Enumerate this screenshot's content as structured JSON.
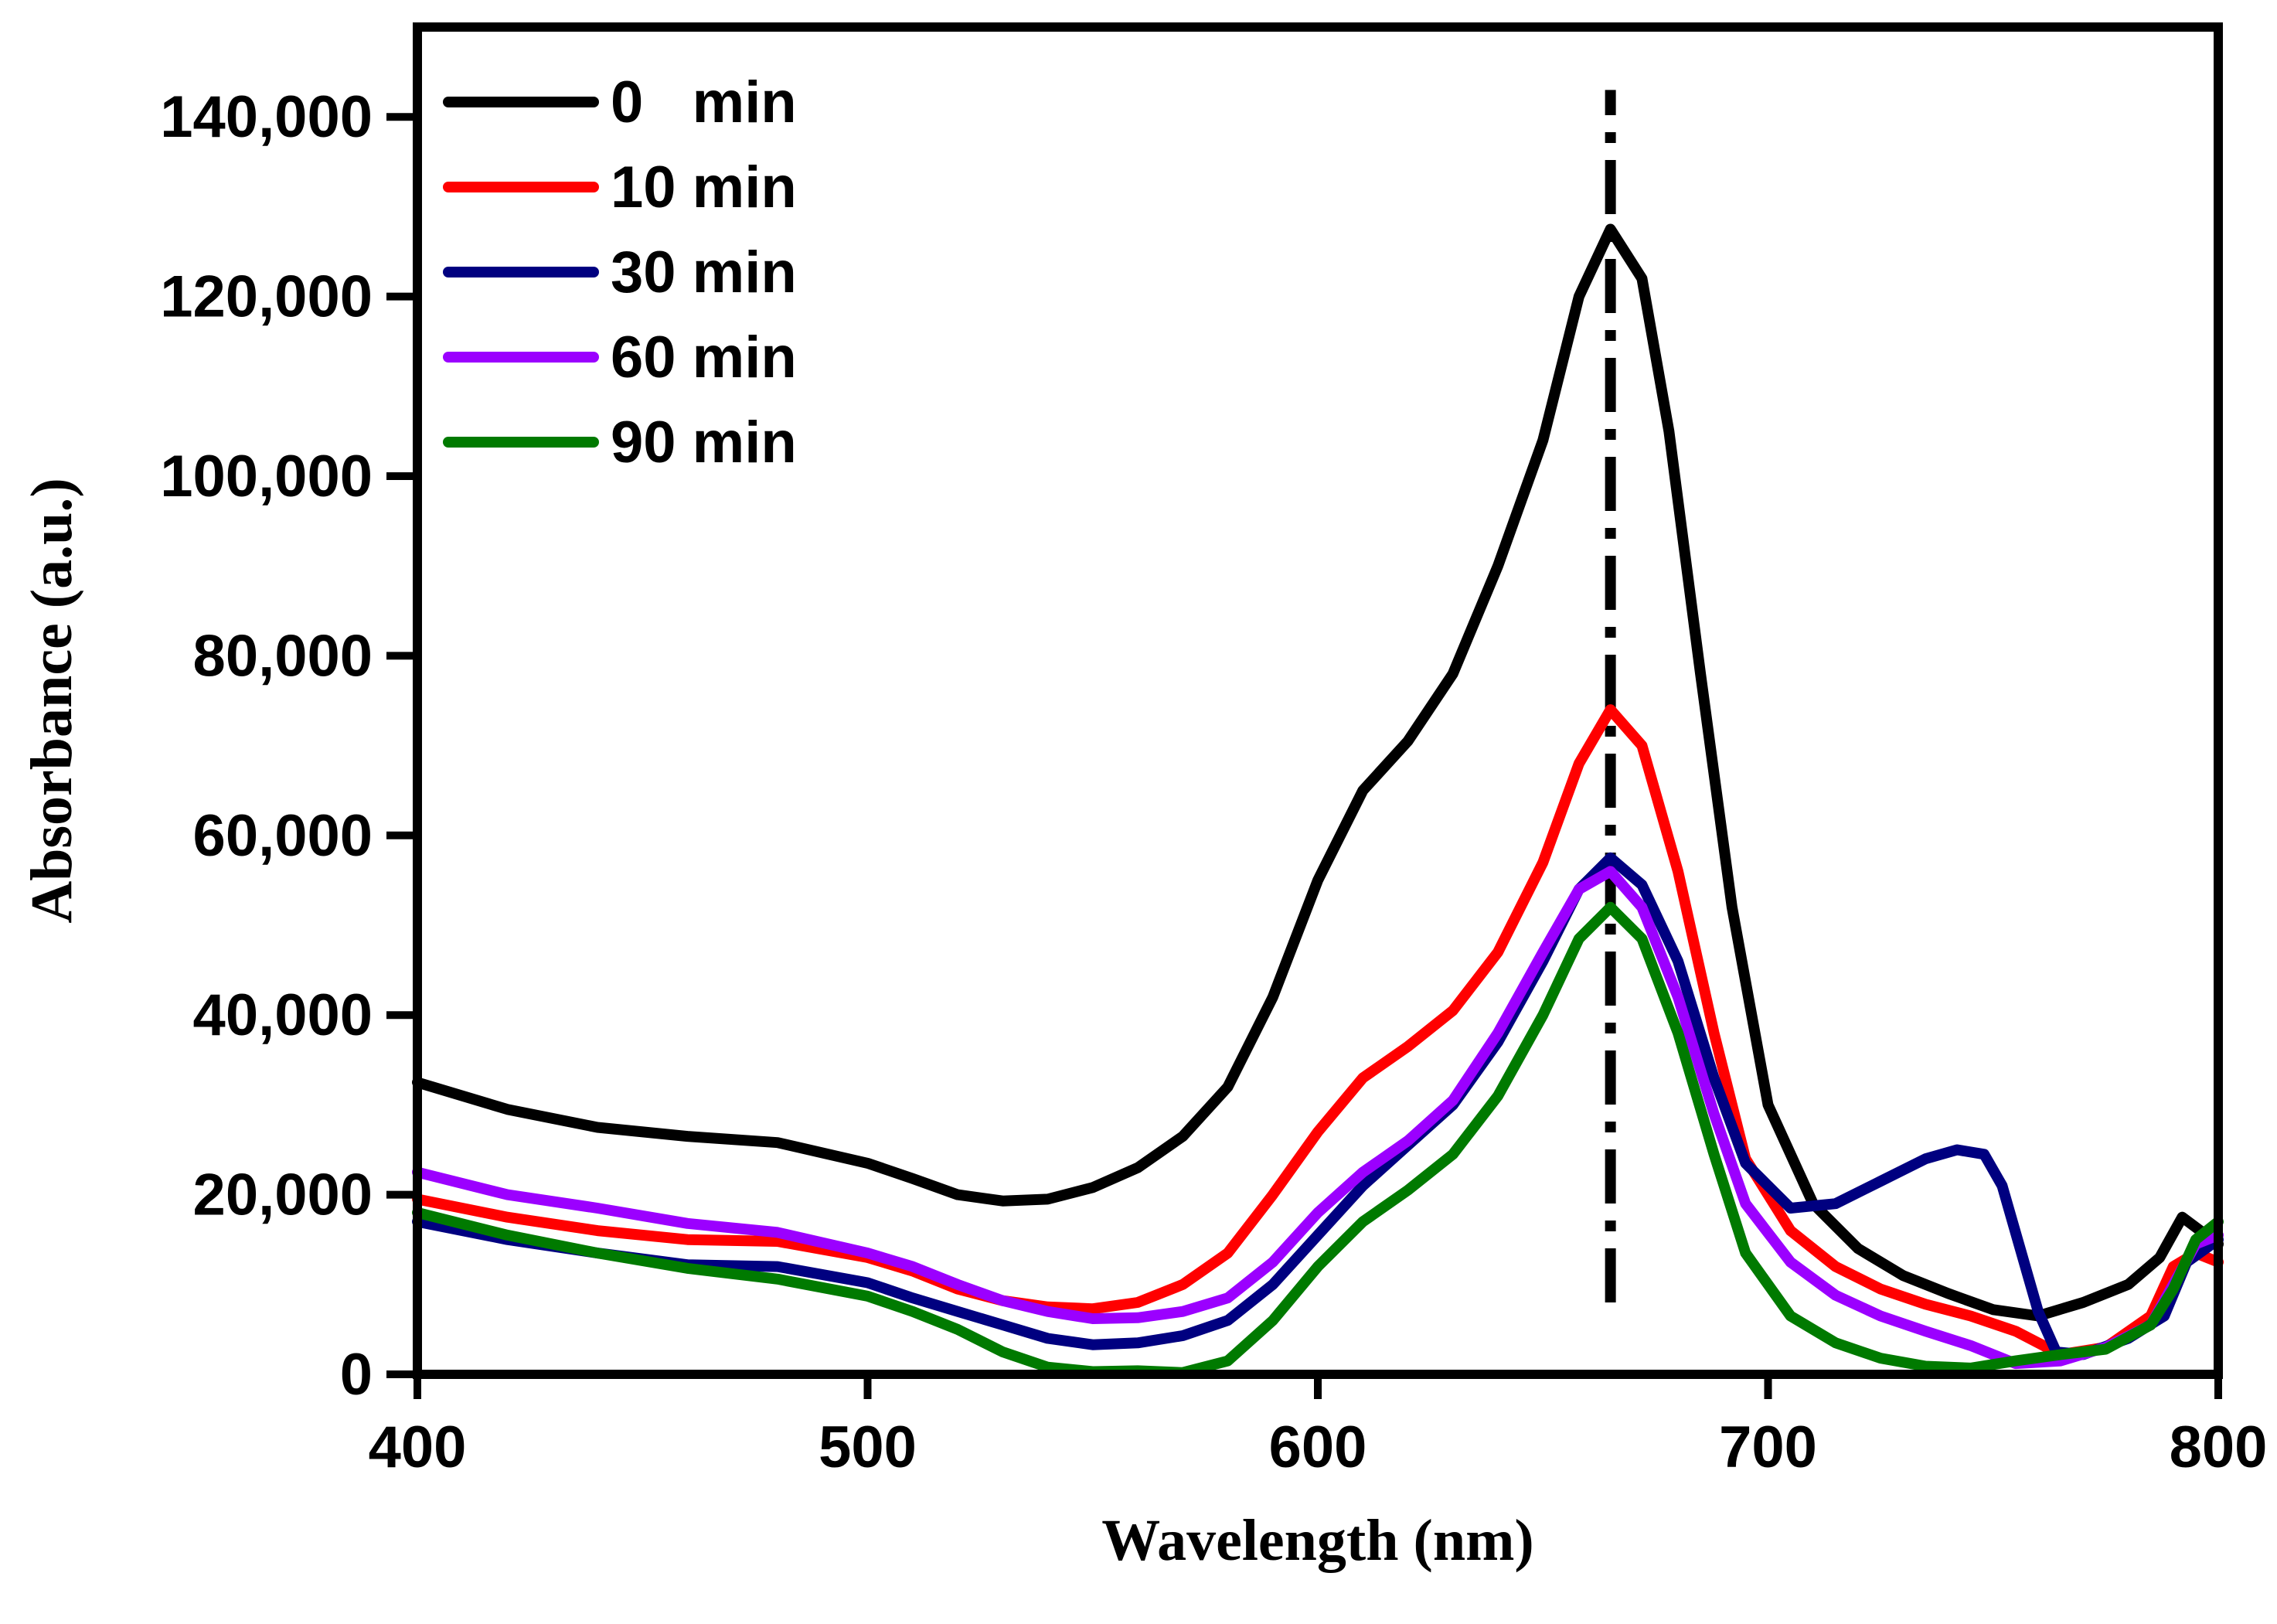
{
  "chart_data": {
    "type": "line",
    "xlabel": "Wavelength (nm)",
    "ylabel": "Absorbance (a.u.)",
    "xlim": [
      400,
      800
    ],
    "ylim": [
      0,
      150000
    ],
    "x_ticks": [
      400,
      500,
      600,
      700,
      800
    ],
    "y_ticks": [
      0,
      20000,
      40000,
      60000,
      80000,
      100000,
      120000,
      140000
    ],
    "y_tick_labels": [
      "0",
      "20,000",
      "40,000",
      "60,000",
      "80,000",
      "100,000",
      "120,000",
      "140,000"
    ],
    "grid": false,
    "legend_position": "top-left",
    "reference_line": {
      "x": 665,
      "style": "dash-dot",
      "y_range": [
        8000,
        143000
      ]
    },
    "series": [
      {
        "name": "0   min",
        "color": "#000000",
        "points": [
          [
            400,
            32500
          ],
          [
            420,
            29500
          ],
          [
            440,
            27500
          ],
          [
            460,
            26500
          ],
          [
            480,
            25800
          ],
          [
            500,
            23500
          ],
          [
            510,
            21800
          ],
          [
            520,
            20000
          ],
          [
            530,
            19300
          ],
          [
            540,
            19500
          ],
          [
            550,
            20800
          ],
          [
            560,
            23000
          ],
          [
            570,
            26500
          ],
          [
            580,
            32000
          ],
          [
            590,
            42000
          ],
          [
            600,
            55000
          ],
          [
            610,
            65000
          ],
          [
            620,
            70500
          ],
          [
            630,
            78000
          ],
          [
            640,
            90000
          ],
          [
            650,
            104000
          ],
          [
            658,
            120000
          ],
          [
            665,
            127500
          ],
          [
            672,
            122000
          ],
          [
            678,
            105000
          ],
          [
            685,
            78000
          ],
          [
            692,
            52000
          ],
          [
            700,
            30000
          ],
          [
            710,
            19000
          ],
          [
            720,
            14000
          ],
          [
            730,
            11000
          ],
          [
            740,
            9000
          ],
          [
            750,
            7200
          ],
          [
            760,
            6500
          ],
          [
            770,
            8000
          ],
          [
            780,
            10000
          ],
          [
            787,
            13000
          ],
          [
            792,
            17500
          ],
          [
            796,
            16000
          ],
          [
            800,
            14500
          ]
        ]
      },
      {
        "name": "10 min",
        "color": "#ff0000",
        "points": [
          [
            400,
            19500
          ],
          [
            420,
            17500
          ],
          [
            440,
            16000
          ],
          [
            460,
            15000
          ],
          [
            480,
            14800
          ],
          [
            500,
            13000
          ],
          [
            510,
            11500
          ],
          [
            520,
            9500
          ],
          [
            530,
            8200
          ],
          [
            540,
            7500
          ],
          [
            550,
            7300
          ],
          [
            560,
            8000
          ],
          [
            570,
            10000
          ],
          [
            580,
            13500
          ],
          [
            590,
            20000
          ],
          [
            600,
            27000
          ],
          [
            610,
            33000
          ],
          [
            620,
            36500
          ],
          [
            630,
            40500
          ],
          [
            640,
            47000
          ],
          [
            650,
            57000
          ],
          [
            658,
            68000
          ],
          [
            665,
            74000
          ],
          [
            672,
            70000
          ],
          [
            680,
            56000
          ],
          [
            688,
            38000
          ],
          [
            695,
            24000
          ],
          [
            705,
            16000
          ],
          [
            715,
            12000
          ],
          [
            725,
            9500
          ],
          [
            735,
            7800
          ],
          [
            745,
            6500
          ],
          [
            755,
            4800
          ],
          [
            765,
            2200
          ],
          [
            775,
            3000
          ],
          [
            785,
            6500
          ],
          [
            790,
            12000
          ],
          [
            795,
            13500
          ],
          [
            800,
            12500
          ]
        ]
      },
      {
        "name": "30 min",
        "color": "#000080",
        "points": [
          [
            400,
            17000
          ],
          [
            420,
            15000
          ],
          [
            440,
            13500
          ],
          [
            460,
            12200
          ],
          [
            480,
            12000
          ],
          [
            500,
            10200
          ],
          [
            510,
            8500
          ],
          [
            520,
            7000
          ],
          [
            530,
            5500
          ],
          [
            540,
            4000
          ],
          [
            550,
            3300
          ],
          [
            560,
            3500
          ],
          [
            570,
            4300
          ],
          [
            580,
            6000
          ],
          [
            590,
            10000
          ],
          [
            600,
            15500
          ],
          [
            610,
            21000
          ],
          [
            620,
            25500
          ],
          [
            630,
            30000
          ],
          [
            640,
            37000
          ],
          [
            650,
            46000
          ],
          [
            658,
            54000
          ],
          [
            665,
            57500
          ],
          [
            672,
            54500
          ],
          [
            680,
            46000
          ],
          [
            688,
            33000
          ],
          [
            695,
            23500
          ],
          [
            705,
            18500
          ],
          [
            715,
            19000
          ],
          [
            725,
            21500
          ],
          [
            735,
            24000
          ],
          [
            742,
            25000
          ],
          [
            748,
            24500
          ],
          [
            752,
            21000
          ],
          [
            756,
            14000
          ],
          [
            760,
            7000
          ],
          [
            764,
            2500
          ],
          [
            770,
            2200
          ],
          [
            780,
            4000
          ],
          [
            788,
            6500
          ],
          [
            793,
            12500
          ],
          [
            800,
            15000
          ]
        ]
      },
      {
        "name": "60 min",
        "color": "#9b00ff",
        "points": [
          [
            400,
            22500
          ],
          [
            420,
            20000
          ],
          [
            440,
            18500
          ],
          [
            460,
            16800
          ],
          [
            480,
            15800
          ],
          [
            500,
            13500
          ],
          [
            510,
            12000
          ],
          [
            520,
            10000
          ],
          [
            530,
            8200
          ],
          [
            540,
            7000
          ],
          [
            550,
            6200
          ],
          [
            560,
            6300
          ],
          [
            570,
            7000
          ],
          [
            580,
            8500
          ],
          [
            590,
            12500
          ],
          [
            600,
            18000
          ],
          [
            610,
            22500
          ],
          [
            620,
            26000
          ],
          [
            630,
            30500
          ],
          [
            640,
            38000
          ],
          [
            650,
            47000
          ],
          [
            658,
            54000
          ],
          [
            665,
            56000
          ],
          [
            672,
            52000
          ],
          [
            680,
            42000
          ],
          [
            688,
            29000
          ],
          [
            695,
            19000
          ],
          [
            705,
            12500
          ],
          [
            715,
            8800
          ],
          [
            725,
            6500
          ],
          [
            735,
            4800
          ],
          [
            745,
            3200
          ],
          [
            755,
            1200
          ],
          [
            765,
            1500
          ],
          [
            775,
            3000
          ],
          [
            785,
            5500
          ],
          [
            790,
            10000
          ],
          [
            795,
            14500
          ],
          [
            800,
            15500
          ]
        ]
      },
      {
        "name": "90 min",
        "color": "#007a00",
        "points": [
          [
            400,
            18000
          ],
          [
            420,
            15500
          ],
          [
            440,
            13500
          ],
          [
            460,
            11800
          ],
          [
            480,
            10600
          ],
          [
            500,
            8700
          ],
          [
            510,
            7000
          ],
          [
            520,
            5000
          ],
          [
            530,
            2500
          ],
          [
            540,
            800
          ],
          [
            550,
            300
          ],
          [
            560,
            400
          ],
          [
            570,
            200
          ],
          [
            580,
            1500
          ],
          [
            590,
            6000
          ],
          [
            600,
            12000
          ],
          [
            610,
            17000
          ],
          [
            620,
            20500
          ],
          [
            630,
            24500
          ],
          [
            640,
            31000
          ],
          [
            650,
            40000
          ],
          [
            658,
            48500
          ],
          [
            665,
            52000
          ],
          [
            672,
            48500
          ],
          [
            680,
            38000
          ],
          [
            688,
            24500
          ],
          [
            695,
            13500
          ],
          [
            705,
            6500
          ],
          [
            715,
            3500
          ],
          [
            725,
            1800
          ],
          [
            735,
            900
          ],
          [
            745,
            700
          ],
          [
            755,
            1500
          ],
          [
            765,
            2200
          ],
          [
            775,
            2800
          ],
          [
            785,
            5500
          ],
          [
            790,
            9500
          ],
          [
            795,
            15000
          ],
          [
            800,
            17000
          ]
        ]
      }
    ]
  }
}
